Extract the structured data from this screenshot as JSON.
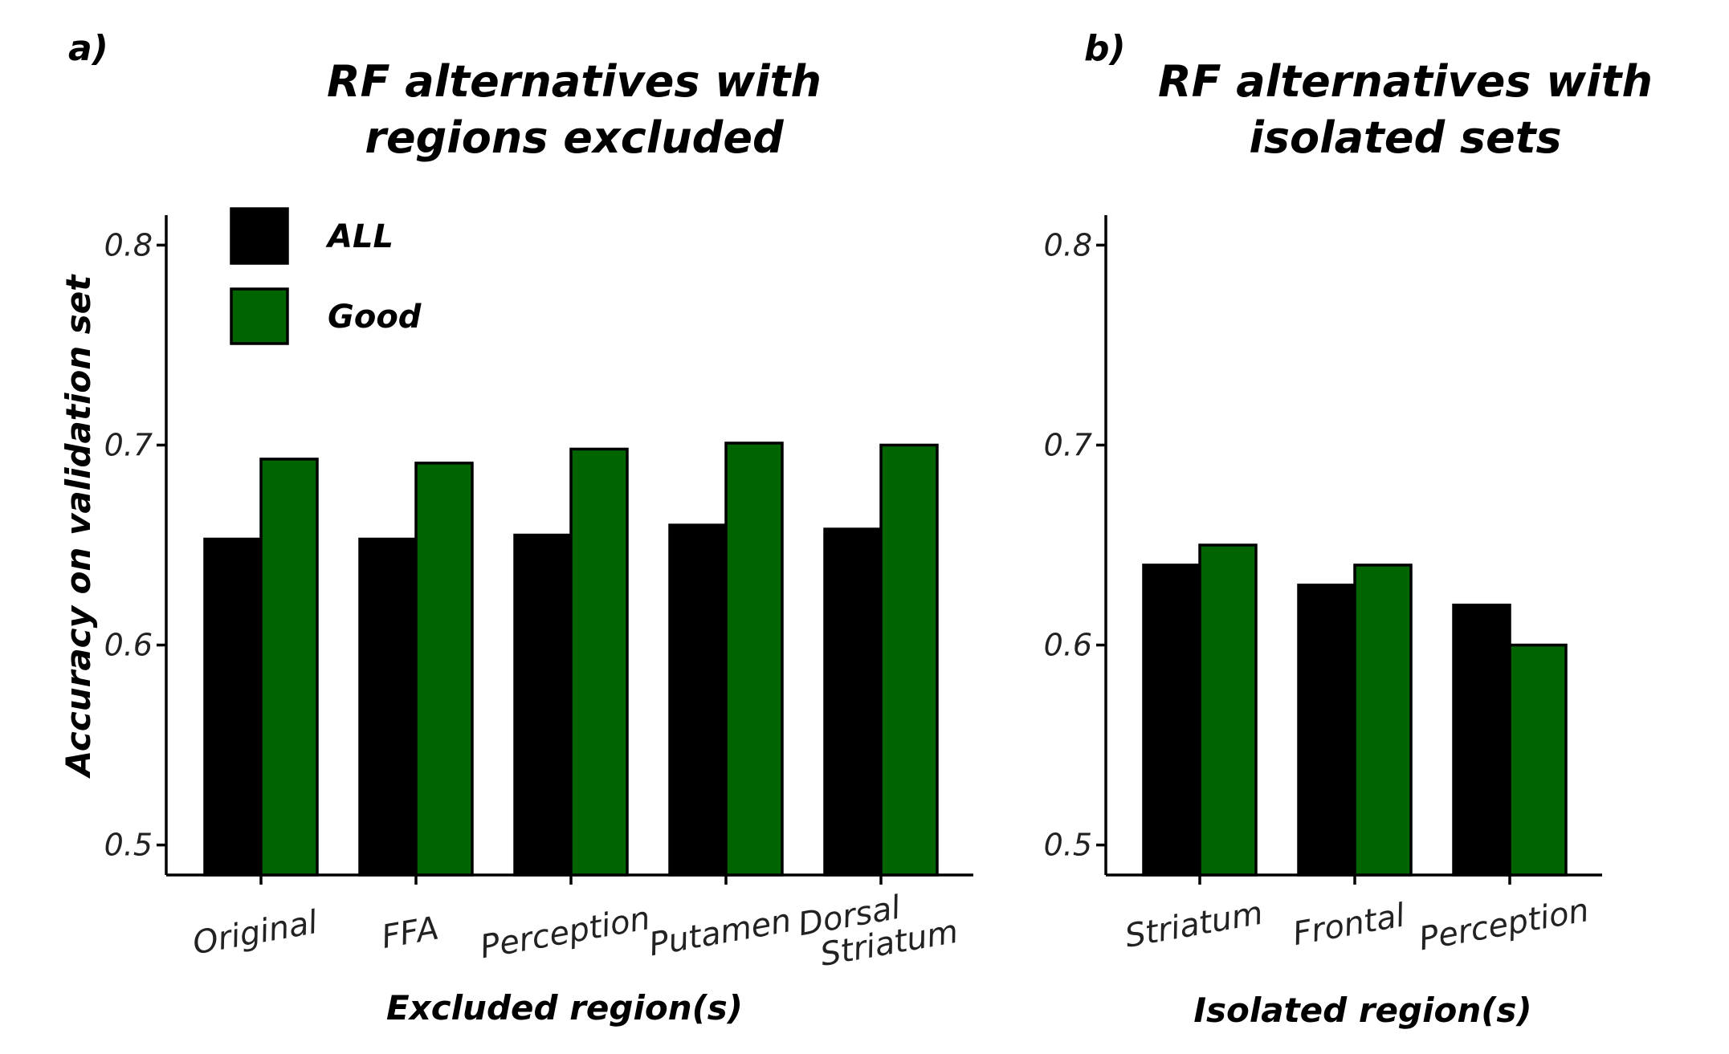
{
  "chart_data": [
    {
      "type": "bar",
      "panel_label": "a)",
      "title": [
        "RF alternatives with",
        "regions excluded"
      ],
      "xlabel": "Excluded region(s)",
      "ylabel": "Accuracy on validation set",
      "categories": [
        [
          "Original"
        ],
        [
          "FFA"
        ],
        [
          "Perception"
        ],
        [
          "Putamen"
        ],
        [
          "Dorsal",
          "Striatum"
        ]
      ],
      "series": [
        {
          "name": "ALL",
          "color": "#000000",
          "values": [
            0.653,
            0.653,
            0.655,
            0.66,
            0.658
          ]
        },
        {
          "name": "Good",
          "color": "#006400",
          "values": [
            0.693,
            0.691,
            0.698,
            0.701,
            0.7
          ]
        }
      ],
      "ylim": [
        0.485,
        0.815
      ],
      "yticks": [
        0.5,
        0.6,
        0.7,
        0.8
      ],
      "ytick_labels": [
        "0.5",
        "0.6",
        "0.7",
        "0.8"
      ],
      "legend_position": "top-left",
      "grid": false
    },
    {
      "type": "bar",
      "panel_label": "b)",
      "title": [
        "RF alternatives with",
        "isolated sets"
      ],
      "xlabel": "Isolated region(s)",
      "ylabel": "",
      "categories": [
        [
          "Striatum"
        ],
        [
          "Frontal"
        ],
        [
          "Perception"
        ]
      ],
      "series": [
        {
          "name": "ALL",
          "color": "#000000",
          "values": [
            0.64,
            0.63,
            0.62
          ]
        },
        {
          "name": "Good",
          "color": "#006400",
          "values": [
            0.65,
            0.64,
            0.6
          ]
        }
      ],
      "ylim": [
        0.485,
        0.815
      ],
      "yticks": [
        0.5,
        0.6,
        0.7,
        0.8
      ],
      "ytick_labels": [
        "0.5",
        "0.6",
        "0.7",
        "0.8"
      ],
      "grid": false
    }
  ]
}
